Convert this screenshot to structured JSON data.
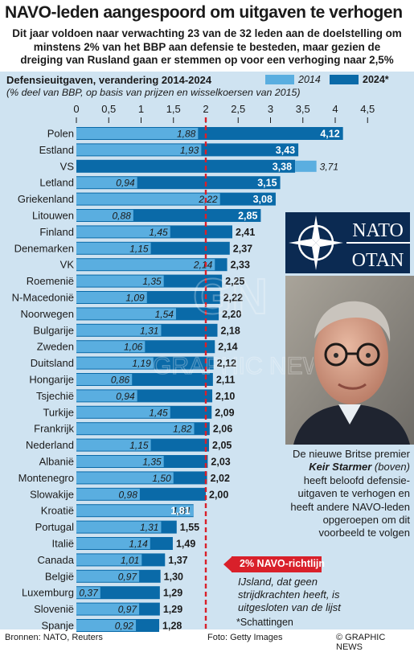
{
  "header": {
    "title": "NAVO-leden aangespoord om uitgaven te verhogen",
    "subtitle_lines": [
      "Dit jaar voldoen naar verwachting 23 van de 32 leden aan de doelstelling om",
      "minstens 2% van het BBP aan defensie te besteden, maar gezien de",
      "dreiging van Rusland gaan er stemmen op voor een verhoging naar 2,5%"
    ]
  },
  "chart_data": {
    "type": "bar",
    "orientation": "horizontal",
    "title": "Defensieuitgaven, verandering 2014-2024",
    "unit_note": "(% deel van BBP, op basis van prijzen en wisselkoersen van 2015)",
    "xlim": [
      0,
      4.5
    ],
    "ticks": [
      "0",
      "0,5",
      "1",
      "1,5",
      "2",
      "2,5",
      "3",
      "3,5",
      "4",
      "4,5"
    ],
    "legend_position": "top-right",
    "series": [
      {
        "name": "2014",
        "color": "#5aaee0"
      },
      {
        "name": "2024*",
        "color": "#0a6aa8"
      }
    ],
    "target_value": 2,
    "target_label": "2% NAVO-richtlijn",
    "categories": [
      "Polen",
      "Estland",
      "VS",
      "Letland",
      "Griekenland",
      "Litouwen",
      "Finland",
      "Denemarken",
      "VK",
      "Roemenië",
      "N-Macedonië",
      "Noorwegen",
      "Bulgarije",
      "Zweden",
      "Duitsland",
      "Hongarije",
      "Tsjechië",
      "Turkije",
      "Frankrijk",
      "Nederland",
      "Albanië",
      "Montenegro",
      "Slowakije",
      "Kroatië",
      "Portugal",
      "Italië",
      "Canada",
      "België",
      "Luxemburg",
      "Slovenië",
      "Spanje"
    ],
    "values_2014": [
      1.88,
      1.93,
      3.71,
      0.94,
      2.22,
      0.88,
      1.45,
      1.15,
      2.14,
      1.35,
      1.09,
      1.54,
      1.31,
      1.06,
      1.19,
      0.86,
      0.94,
      1.45,
      1.82,
      1.15,
      1.35,
      1.5,
      0.98,
      1.81,
      1.31,
      1.14,
      1.01,
      0.97,
      0.37,
      0.97,
      0.92
    ],
    "values_2024": [
      4.12,
      3.43,
      3.38,
      3.15,
      3.08,
      2.85,
      2.41,
      2.37,
      2.33,
      2.25,
      2.22,
      2.2,
      2.18,
      2.14,
      2.12,
      2.11,
      2.1,
      2.09,
      2.06,
      2.05,
      2.03,
      2.02,
      2.0,
      1.81,
      1.55,
      1.49,
      1.37,
      1.3,
      1.29,
      1.29,
      1.28
    ],
    "labels_2014": [
      "1,88",
      "1,93",
      "3,71",
      "0,94",
      "2,22",
      "0,88",
      "1,45",
      "1,15",
      "2,14",
      "1,35",
      "1,09",
      "1,54",
      "1,31",
      "1,06",
      "1,19",
      "0,86",
      "0,94",
      "1,45",
      "1,82",
      "1,15",
      "1,35",
      "1,50",
      "0,98",
      "1,81",
      "1,31",
      "1,14",
      "1,01",
      "0,97",
      "0,37",
      "0,97",
      "0,92"
    ],
    "labels_2024": [
      "4,12",
      "3,43",
      "3,38",
      "3,15",
      "3,08",
      "2,85",
      "2,41",
      "2,37",
      "2,33",
      "2,25",
      "2,22",
      "2,20",
      "2,18",
      "2,14",
      "2,12",
      "2,11",
      "2,10",
      "2,09",
      "2,06",
      "2,05",
      "2,03",
      "2,02",
      "2,00",
      "1,81",
      "1,55",
      "1,49",
      "1,37",
      "1,30",
      "1,29",
      "1,29",
      "1,28"
    ]
  },
  "logo": {
    "line1": "NATO",
    "line2": "OTAN"
  },
  "caption": {
    "before": "De nieuwe Britse premier ",
    "name": "Keir Starmer",
    "paren": " (boven)",
    "after": " heeft beloofd defensie-uitgaven te verhogen en heeft andere NAVO-leden opgeroepen om dit voorbeeld te volgen"
  },
  "note": "IJsland, dat geen strijdkrachten heeft, is uitgesloten van de lijst",
  "estimates": "*Schattingen",
  "footer": {
    "sources": "Bronnen: NATO, Reuters",
    "photo": "Foto: Getty Images",
    "copyright": "© GRAPHIC NEWS"
  },
  "watermark": "GRAPHIC NEWS",
  "colors": {
    "bar_2014": "#5aaee0",
    "bar_2024": "#0a6aa8",
    "target_line": "#d9202a",
    "background_band": "#cfe3f1"
  }
}
